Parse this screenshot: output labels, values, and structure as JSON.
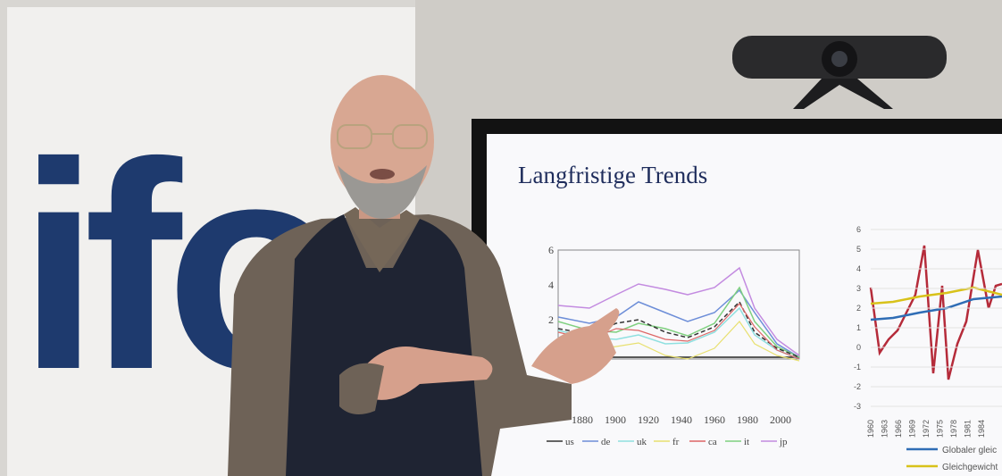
{
  "logo": "ifo",
  "slide": {
    "title": "Langfristige Trends",
    "left_chart": {
      "y_ticks": [
        "6",
        "4",
        "2"
      ],
      "x_ticks": [
        "1880",
        "1900",
        "1920",
        "1940",
        "1960",
        "1980",
        "2000"
      ],
      "legend": [
        "us",
        "de",
        "uk",
        "fr",
        "ca",
        "it",
        "jp"
      ]
    },
    "right_chart": {
      "y_ticks": [
        "6",
        "5",
        "4",
        "3",
        "2",
        "1",
        "0",
        "-1",
        "-2",
        "-3"
      ],
      "x_ticks": [
        "1960",
        "1963",
        "1966",
        "1969",
        "1972",
        "1975",
        "1978",
        "1981",
        "1984"
      ],
      "legend": [
        "Globaler gleic",
        "Gleichgewicht"
      ]
    }
  }
}
